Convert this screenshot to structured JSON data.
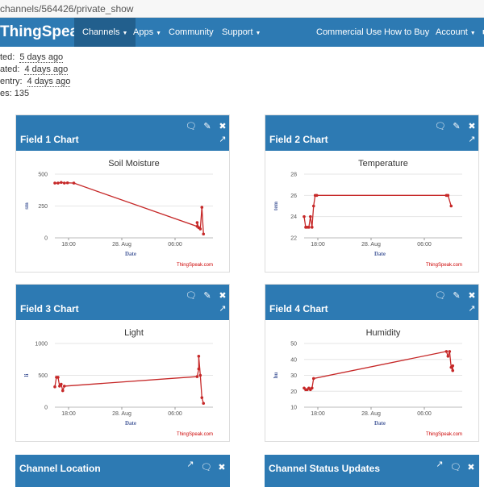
{
  "browser": {
    "url": "channels/564426/private_show"
  },
  "navbar": {
    "brand": "ThingSpeak",
    "brand_tm": "™",
    "items": [
      {
        "label": "Channels",
        "caret": "▼",
        "active": true
      },
      {
        "label": "Apps",
        "caret": "▼",
        "active": false
      },
      {
        "label": "Community",
        "caret": "",
        "active": false
      },
      {
        "label": "Support",
        "caret": "▼",
        "active": false
      },
      {
        "label": "Commercial Use",
        "caret": "",
        "active": false
      },
      {
        "label": "How to Buy",
        "caret": "",
        "active": false
      },
      {
        "label": "Account",
        "caret": "▼",
        "active": false
      }
    ]
  },
  "meta": {
    "rows": [
      {
        "label": "ted:",
        "value": "5 days ago"
      },
      {
        "label": "ated:",
        "value": "4 days ago"
      },
      {
        "label": "entry:",
        "value": "4 days ago"
      },
      {
        "label": "es: 135",
        "value": ""
      }
    ]
  },
  "panels": [
    {
      "title": "Field 1 Chart"
    },
    {
      "title": "Field 2 Chart"
    },
    {
      "title": "Field 3 Chart"
    },
    {
      "title": "Field 4 Chart"
    },
    {
      "title": "Channel Location"
    },
    {
      "title": "Channel Status Updates"
    }
  ],
  "icons": {
    "comment": "comment-icon",
    "edit": "pencil-icon",
    "close": "close-icon",
    "external": "external-link-icon"
  },
  "colors": {
    "header": "#2d7ab3",
    "line": "#c62828",
    "active_nav": "#225f8d"
  },
  "chart_data": [
    {
      "type": "line",
      "title": "Soil Moisture",
      "xlabel": "Date",
      "ylabel": "sm",
      "credit": "ThingSpeak.com",
      "x_ticks": [
        "18:00",
        "28. Aug",
        "06:00"
      ],
      "y_ticks": [
        "0",
        "250",
        "500"
      ],
      "ylim": [
        0,
        500
      ],
      "xlim": [
        0,
        100
      ],
      "points": [
        [
          0,
          430
        ],
        [
          2,
          430
        ],
        [
          4,
          435
        ],
        [
          6,
          430
        ],
        [
          8,
          432
        ],
        [
          12,
          430
        ],
        [
          90,
          90
        ],
        [
          90,
          120
        ],
        [
          91,
          80
        ],
        [
          92,
          70
        ],
        [
          93,
          240
        ],
        [
          94,
          30
        ]
      ]
    },
    {
      "type": "line",
      "title": "Temperature",
      "xlabel": "Date",
      "ylabel": "tem",
      "credit": "ThingSpeak.com",
      "x_ticks": [
        "18:00",
        "28. Aug",
        "06:00"
      ],
      "y_ticks": [
        "22",
        "24",
        "26",
        "28"
      ],
      "ylim": [
        22,
        28
      ],
      "xlim": [
        0,
        100
      ],
      "points": [
        [
          0,
          24
        ],
        [
          1,
          23
        ],
        [
          2,
          23
        ],
        [
          3,
          23
        ],
        [
          4,
          24
        ],
        [
          5,
          23
        ],
        [
          6,
          25
        ],
        [
          7,
          26
        ],
        [
          8,
          26
        ],
        [
          90,
          26
        ],
        [
          91,
          26
        ],
        [
          93,
          25
        ]
      ]
    },
    {
      "type": "line",
      "title": "Light",
      "xlabel": "Date",
      "ylabel": "li",
      "credit": "ThingSpeak.com",
      "x_ticks": [
        "18:00",
        "28. Aug",
        "06:00"
      ],
      "y_ticks": [
        "0",
        "500",
        "1000"
      ],
      "ylim": [
        0,
        1000
      ],
      "xlim": [
        0,
        100
      ],
      "points": [
        [
          0,
          320
        ],
        [
          1,
          470
        ],
        [
          2,
          470
        ],
        [
          3,
          330
        ],
        [
          4,
          360
        ],
        [
          5,
          260
        ],
        [
          6,
          330
        ],
        [
          90,
          480
        ],
        [
          91,
          600
        ],
        [
          91,
          800
        ],
        [
          92,
          500
        ],
        [
          93,
          150
        ],
        [
          94,
          60
        ]
      ]
    },
    {
      "type": "line",
      "title": "Humidity",
      "xlabel": "Date",
      "ylabel": "hu",
      "credit": "ThingSpeak.com",
      "x_ticks": [
        "18:00",
        "28. Aug",
        "06:00"
      ],
      "y_ticks": [
        "10",
        "20",
        "30",
        "40",
        "50"
      ],
      "ylim": [
        10,
        50
      ],
      "xlim": [
        0,
        100
      ],
      "points": [
        [
          0,
          22
        ],
        [
          1,
          21
        ],
        [
          2,
          21
        ],
        [
          3,
          22
        ],
        [
          4,
          21
        ],
        [
          5,
          22
        ],
        [
          6,
          28
        ],
        [
          90,
          45
        ],
        [
          91,
          42
        ],
        [
          92,
          45
        ],
        [
          93,
          35
        ],
        [
          94,
          33
        ],
        [
          94,
          36
        ]
      ]
    }
  ]
}
